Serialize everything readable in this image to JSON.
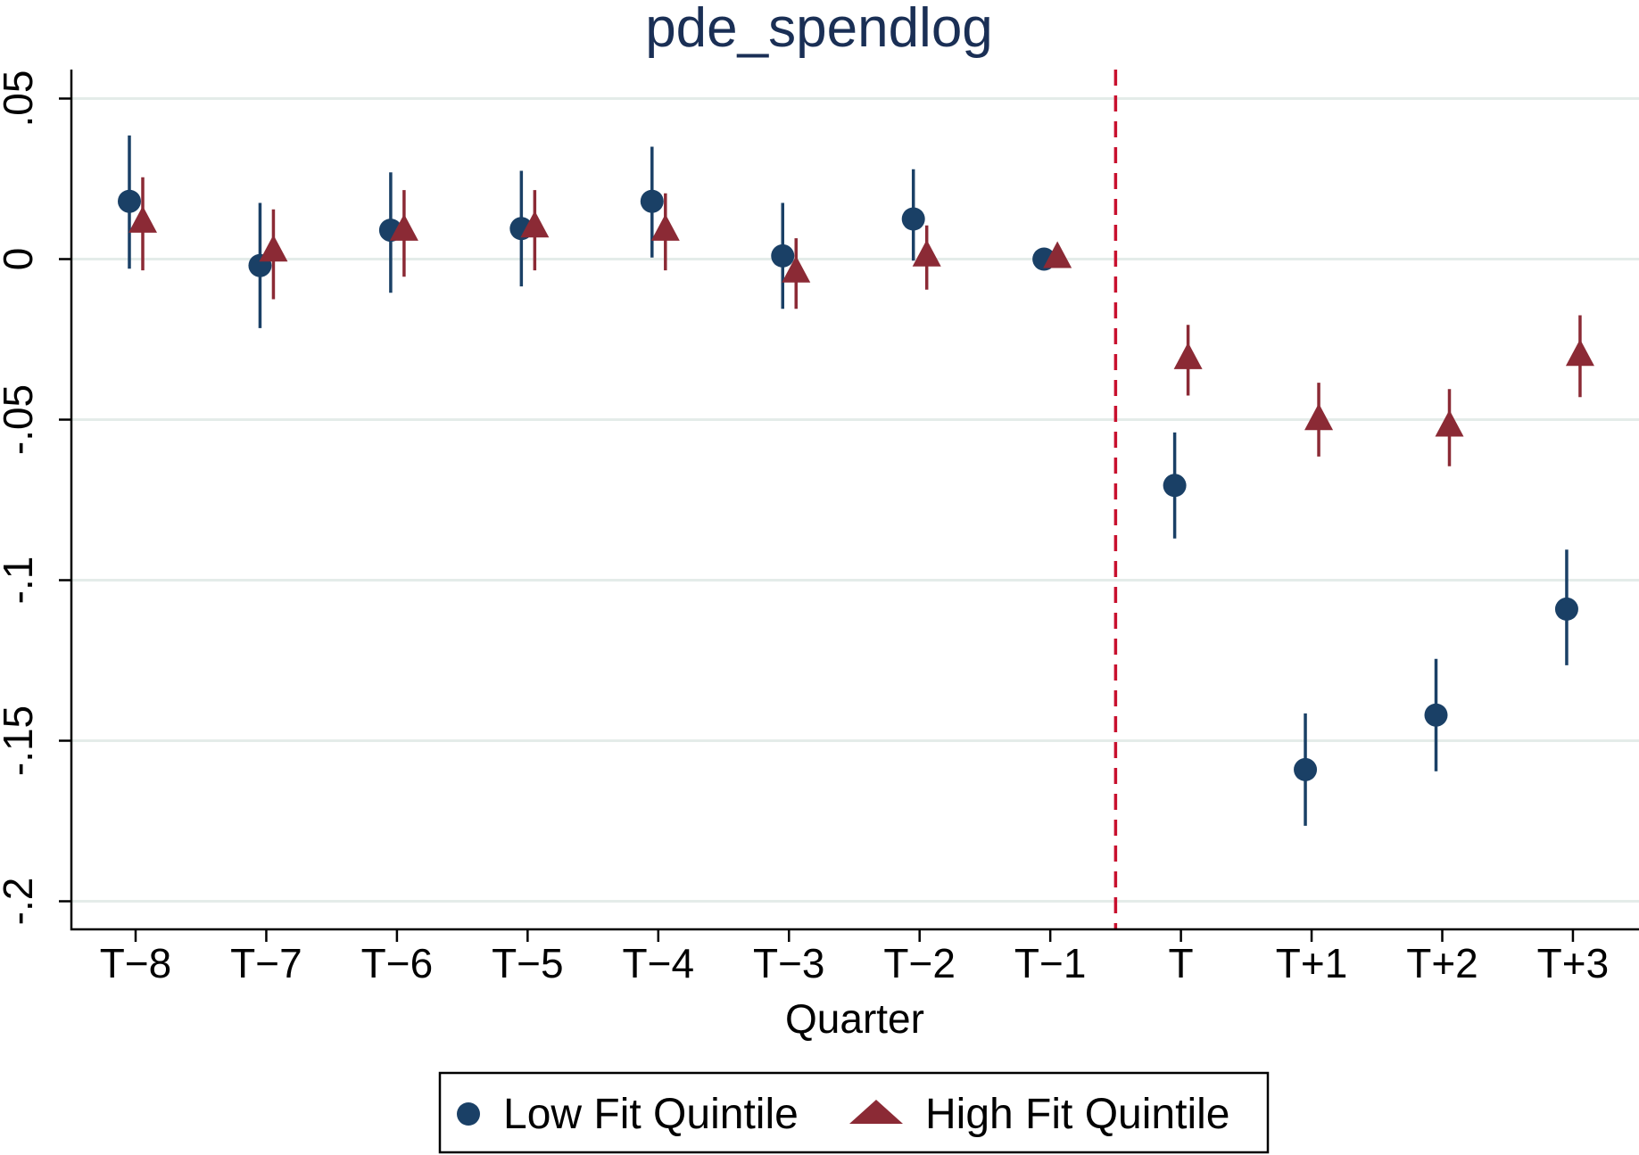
{
  "chart_data": {
    "type": "scatter",
    "title": "pde_spendlog",
    "xlabel": "Quarter",
    "ylabel": "",
    "ylim": [
      -0.209,
      0.058
    ],
    "yticks": [
      0.05,
      0,
      -0.05,
      -0.1,
      -0.15,
      -0.2
    ],
    "ytick_labels": [
      ".05",
      "0",
      "-.05",
      "-.1",
      "-.15",
      "-.2"
    ],
    "categories": [
      "T−8",
      "T−7",
      "T−6",
      "T−5",
      "T−4",
      "T−3",
      "T−2",
      "T−1",
      "T",
      "T+1",
      "T+2",
      "T+3"
    ],
    "event_line_between": [
      "T−1",
      "T"
    ],
    "event_line_color": "#c8102e",
    "grid": true,
    "legend_position": "bottom",
    "series": [
      {
        "name": "Low Fit Quintile",
        "marker": "circle",
        "color": "#1a4066",
        "values": [
          0.018,
          -0.002,
          0.009,
          0.0095,
          0.018,
          0.001,
          0.0125,
          0.0,
          -0.0705,
          -0.159,
          -0.142,
          -0.109
        ],
        "ci_low": [
          -0.003,
          -0.0215,
          -0.0105,
          -0.0085,
          0.0005,
          -0.0155,
          -0.0005,
          null,
          -0.087,
          -0.1765,
          -0.1595,
          -0.1265
        ],
        "ci_high": [
          0.0385,
          0.0175,
          0.027,
          0.0275,
          0.035,
          0.0175,
          0.028,
          null,
          -0.054,
          -0.1415,
          -0.1245,
          -0.0905
        ]
      },
      {
        "name": "High Fit Quintile",
        "marker": "triangle",
        "color": "#8b2a35",
        "values": [
          0.011,
          0.002,
          0.0085,
          0.0095,
          0.0085,
          -0.0045,
          0.0005,
          0.0,
          -0.0315,
          -0.0505,
          -0.0525,
          -0.0305
        ],
        "ci_low": [
          -0.0035,
          -0.0125,
          -0.0055,
          -0.0035,
          -0.0035,
          -0.0155,
          -0.0095,
          null,
          -0.0425,
          -0.0615,
          -0.0645,
          -0.043
        ],
        "ci_high": [
          0.0255,
          0.0155,
          0.0215,
          0.0215,
          0.0205,
          0.0065,
          0.0105,
          null,
          -0.0205,
          -0.0385,
          -0.0405,
          -0.0175
        ]
      }
    ]
  }
}
